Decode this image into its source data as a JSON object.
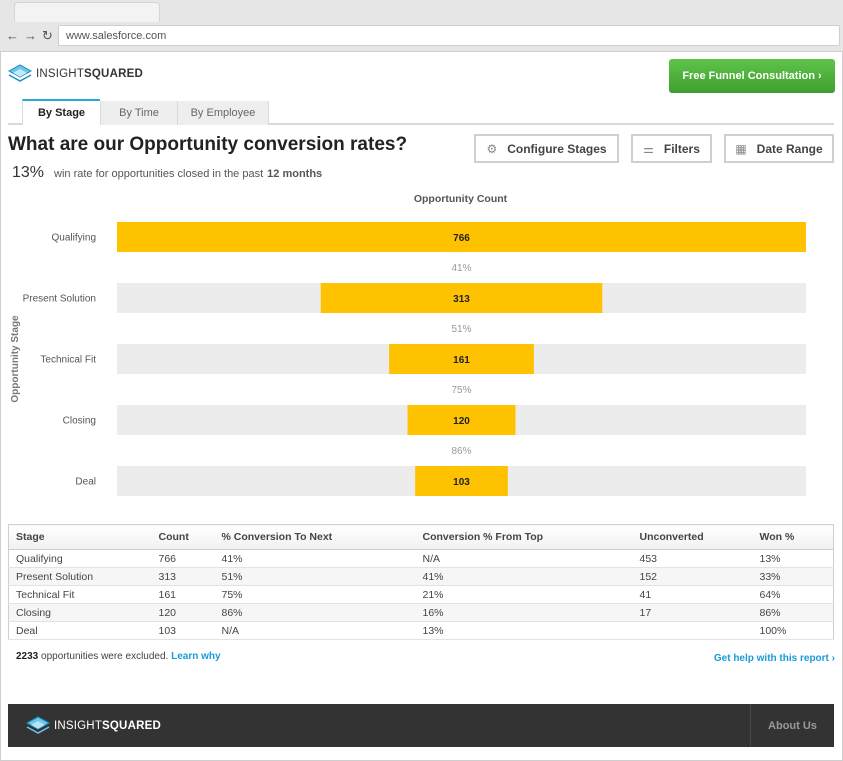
{
  "browser": {
    "url": "www.salesforce.com",
    "back": "←",
    "forward": "→",
    "reload": "↻"
  },
  "header": {
    "logo_a": "INSIGHT",
    "logo_b": "SQUARED",
    "cta": "Free Funnel Consultation ›"
  },
  "tabs": [
    {
      "label": "By Stage",
      "active": true
    },
    {
      "label": "By Time",
      "active": false
    },
    {
      "label": "By Employee",
      "active": false
    }
  ],
  "page": {
    "title": "What are our Opportunity conversion rates?",
    "win_rate": "13%",
    "win_rate_text": "win rate for opportunities closed in the past",
    "win_rate_period": "12 months"
  },
  "toolbar": {
    "configure": "Configure Stages",
    "filters": "Filters",
    "date_range": "Date Range"
  },
  "chart_data": {
    "type": "bar",
    "orientation": "horizontal-funnel",
    "title": "Opportunity Count",
    "ylabel": "Opportunity Stage",
    "categories": [
      "Qualifying",
      "Present Solution",
      "Technical Fit",
      "Closing",
      "Deal"
    ],
    "values": [
      766,
      313,
      161,
      120,
      103
    ],
    "conversions": [
      "41%",
      "51%",
      "75%",
      "86%"
    ],
    "xlim": [
      0,
      766
    ],
    "bar_color": "#ffc200",
    "track_color": "#ececec"
  },
  "table": {
    "headers": [
      "Stage",
      "Count",
      "% Conversion To Next",
      "Conversion % From Top",
      "Unconverted",
      "Won %"
    ],
    "rows": [
      [
        "Qualifying",
        "766",
        "41%",
        "N/A",
        "453",
        "13%"
      ],
      [
        "Present Solution",
        "313",
        "51%",
        "41%",
        "152",
        "33%"
      ],
      [
        "Technical Fit",
        "161",
        "75%",
        "21%",
        "41",
        "64%"
      ],
      [
        "Closing",
        "120",
        "86%",
        "16%",
        "17",
        "86%"
      ],
      [
        "Deal",
        "103",
        "N/A",
        "13%",
        "",
        "100%"
      ]
    ]
  },
  "excluded": {
    "count": "2233",
    "text": "opportunities were excluded.",
    "link": "Learn why"
  },
  "help_link": "Get help with this report ›",
  "footer": {
    "logo_a": "INSIGHT",
    "logo_b": "SQUARED",
    "about": "About Us"
  },
  "colors": {
    "accent": "#29a8e0",
    "cta_green": "#4cb13a",
    "bar": "#ffc200",
    "footer_bg": "#333333"
  }
}
